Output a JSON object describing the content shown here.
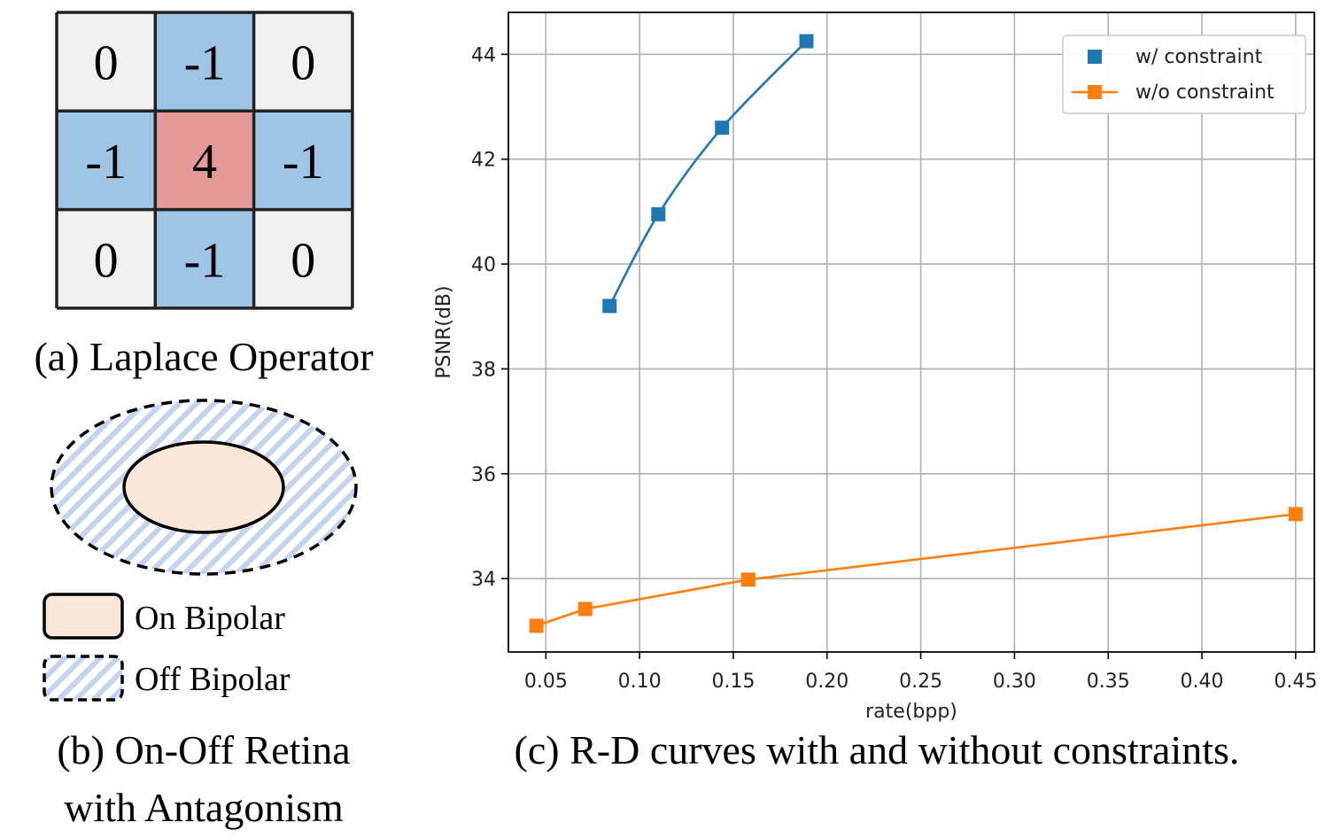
{
  "panel_a": {
    "grid": [
      [
        "0",
        "-1",
        "0"
      ],
      [
        "-1",
        "4",
        "-1"
      ],
      [
        "0",
        "-1",
        "0"
      ]
    ],
    "caption": "(a) Laplace Operator"
  },
  "panel_b": {
    "legend_on": "On Bipolar",
    "legend_off": "Off Bipolar",
    "caption_line1": "(b) On-Off Retina",
    "caption_line2": "with Antagonism"
  },
  "panel_c": {
    "caption": "(c) R-D curves with and without constraints."
  },
  "colors": {
    "neutral_cell": "#f1f1f1",
    "neg_cell": "#9fc5e6",
    "center_cell": "#e39a97",
    "on_bipolar": "#fbe6da",
    "off_stripe": "#c5d3ec",
    "series_blue": "#1f77b4",
    "series_orange": "#ff7f0e"
  },
  "chart_data": {
    "type": "line",
    "xlabel": "rate(bpp)",
    "ylabel": "PSNR(dB)",
    "xlim": [
      0.03,
      0.46
    ],
    "ylim": [
      32.6,
      44.8
    ],
    "xticks": [
      0.05,
      0.1,
      0.15,
      0.2,
      0.25,
      0.3,
      0.35,
      0.4,
      0.45
    ],
    "xtick_labels": [
      "0.05",
      "0.10",
      "0.15",
      "0.20",
      "0.25",
      "0.30",
      "0.35",
      "0.40",
      "0.45"
    ],
    "yticks": [
      34,
      36,
      38,
      40,
      42,
      44
    ],
    "ytick_labels": [
      "34",
      "36",
      "38",
      "40",
      "42",
      "44"
    ],
    "grid": true,
    "legend_position": "top-right",
    "series": [
      {
        "name": "w/ constraint",
        "color": "#1f77b4",
        "smooth": true,
        "x": [
          0.084,
          0.11,
          0.144,
          0.189
        ],
        "y": [
          39.2,
          40.95,
          42.6,
          44.25
        ]
      },
      {
        "name": "w/o constraint",
        "color": "#ff7f0e",
        "smooth": false,
        "x": [
          0.045,
          0.071,
          0.158,
          0.45
        ],
        "y": [
          33.1,
          33.42,
          33.98,
          35.23
        ]
      }
    ]
  }
}
